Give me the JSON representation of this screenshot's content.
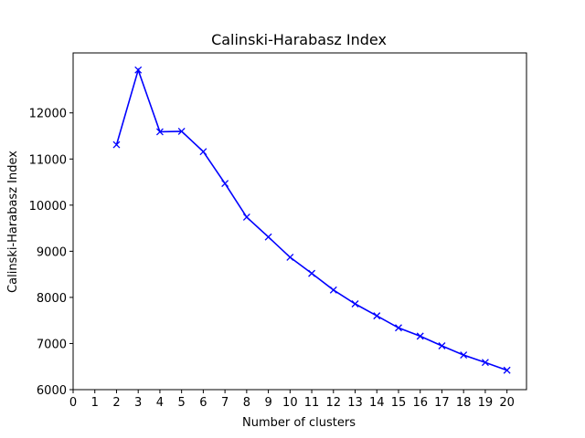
{
  "chart_data": {
    "type": "line",
    "title": "Calinski-Harabasz Index",
    "xlabel": "Number of clusters",
    "ylabel": "Calinski-Harabasz Index",
    "xlim": [
      0,
      20.9
    ],
    "ylim": [
      6000,
      13300
    ],
    "xticks": [
      0,
      1,
      2,
      3,
      4,
      5,
      6,
      7,
      8,
      9,
      10,
      11,
      12,
      13,
      14,
      15,
      16,
      17,
      18,
      19,
      20
    ],
    "yticks": [
      6000,
      7000,
      8000,
      9000,
      10000,
      11000,
      12000
    ],
    "grid": false,
    "legend": "none",
    "marker": "x",
    "line_color": "#0000ff",
    "series": [
      {
        "x": [
          2,
          3,
          4,
          5,
          6,
          7,
          8,
          9,
          10,
          11,
          12,
          13,
          14,
          15,
          16,
          17,
          18,
          19,
          20
        ],
        "values": [
          11310,
          12930,
          11590,
          11600,
          11160,
          10470,
          9740,
          9310,
          8870,
          8520,
          8160,
          7860,
          7600,
          7340,
          7160,
          6950,
          6750,
          6590,
          6420
        ]
      }
    ]
  }
}
